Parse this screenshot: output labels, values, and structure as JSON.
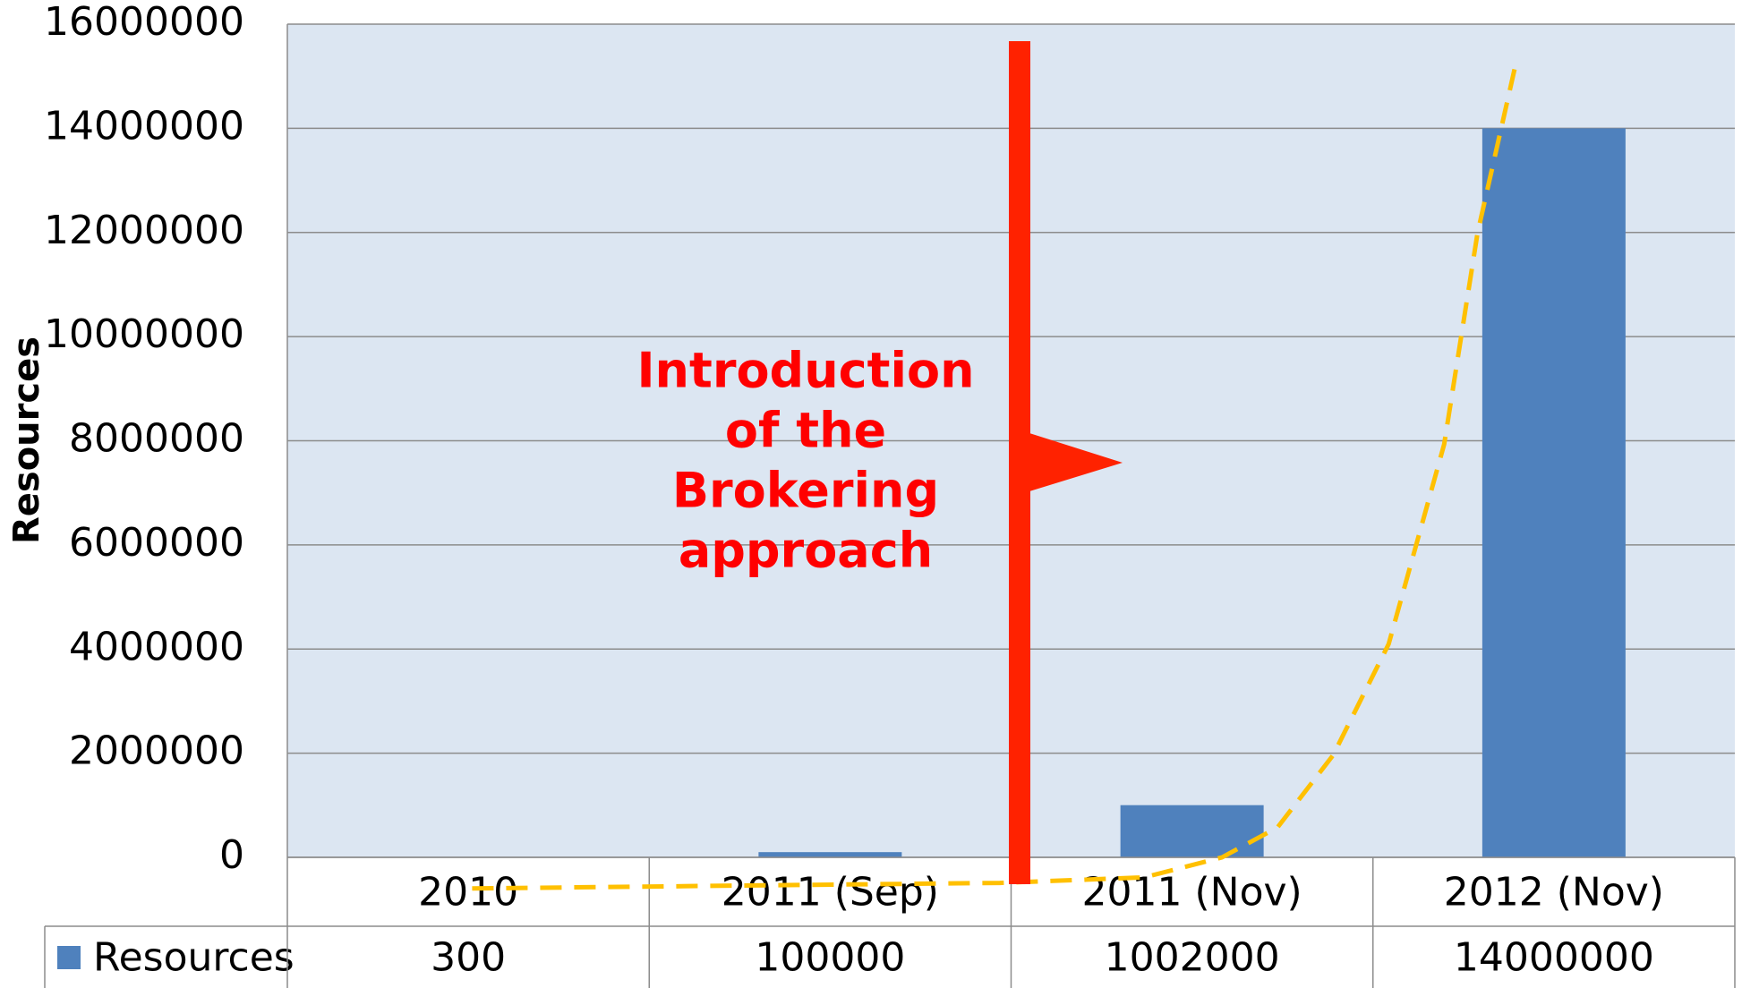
{
  "chart_data": {
    "type": "bar",
    "y_label": "Resources",
    "annotation": [
      "Introduction",
      "of the",
      "Brokering",
      "approach"
    ],
    "categories": [
      "2010",
      "2011 (Sep)",
      "2011 (Nov)",
      "2012 (Nov)"
    ],
    "series": [
      {
        "name": "Resources",
        "color": "#4f81bd",
        "values": [
          300,
          100000,
          1002000,
          14000000
        ]
      }
    ],
    "ylim": [
      0,
      16000000
    ],
    "yticks": [
      0,
      2000000,
      4000000,
      6000000,
      8000000,
      10000000,
      12000000,
      14000000,
      16000000
    ],
    "grid": true,
    "data_table": true
  }
}
